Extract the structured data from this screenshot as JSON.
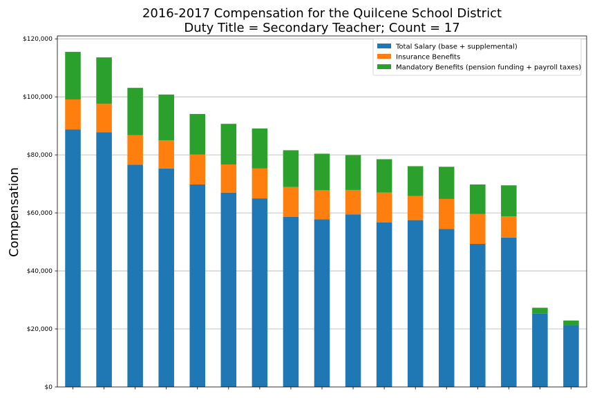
{
  "chart_data": {
    "type": "bar",
    "stacked": true,
    "title": "2016-2017 Compensation for the Quilcene School District",
    "subtitle": "Duty Title = Secondary Teacher; Count = 17",
    "xlabel": "",
    "ylabel": "Compensation",
    "ylim": [
      0,
      121000
    ],
    "yticks": [
      0,
      20000,
      40000,
      60000,
      80000,
      100000,
      120000
    ],
    "ytick_labels": [
      "$0",
      "$20,000",
      "$40,000",
      "$60,000",
      "$80,000",
      "$100,000",
      "$120,000"
    ],
    "grid": "horizontal",
    "legend_position": "top-right",
    "series": [
      {
        "name": "Total Salary (base + supplemental)",
        "color": "#1f77b4",
        "values": [
          88800,
          87800,
          76600,
          75300,
          69800,
          67000,
          65000,
          58600,
          57800,
          59500,
          56700,
          57500,
          54500,
          49300,
          51500,
          25300,
          21300
        ]
      },
      {
        "name": "Insurance Benefits",
        "color": "#ff7f0e",
        "values": [
          10300,
          9800,
          10200,
          9700,
          10300,
          9700,
          10300,
          10300,
          10000,
          8400,
          10300,
          8300,
          10300,
          10300,
          7300,
          0,
          0
        ]
      },
      {
        "name": "Mandatory Benefits (pension funding + payroll taxes)",
        "color": "#2ca02c",
        "values": [
          16400,
          16000,
          16300,
          15800,
          14000,
          14000,
          13800,
          12700,
          12600,
          12000,
          11500,
          10300,
          11100,
          10200,
          10700,
          2000,
          1600
        ]
      }
    ]
  }
}
